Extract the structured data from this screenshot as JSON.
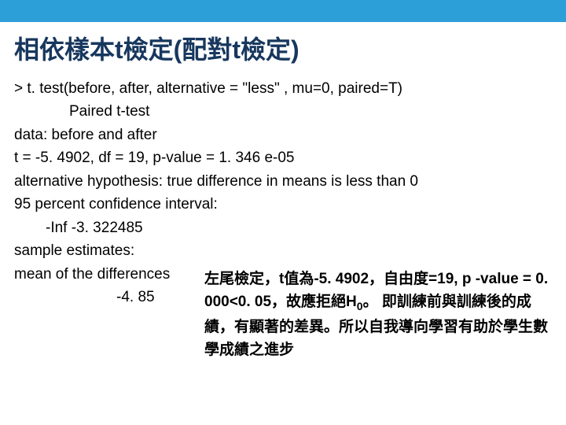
{
  "top_bar_color": "#2d9fd8",
  "title_color": "#17375e",
  "text_color": "#000000",
  "title": "相依樣本t檢定(配對t檢定)",
  "lines": {
    "l1": "> t. test(before, after, alternative = \"less\" , mu=0, paired=T)",
    "l2": "Paired t-test",
    "l3": "data:  before and after",
    "l4": "t = -5. 4902, df = 19, p-value = 1. 346 e-05",
    "l5": "alternative hypothesis: true difference in means is less than 0",
    "l6": "95 percent confidence interval:",
    "l7": "-Inf -3. 322485",
    "l8": "sample estimates:",
    "l9": "mean of the differences",
    "l10": "-4. 85"
  },
  "explain": {
    "p1a": "左尾檢定，t值為-5. 4902，自由度=19, p",
    "p1b": "-value = 0. 000<0. 05，故應拒絕H",
    "p1c": "。",
    "p2": "即訓練前與訓練後的成績，有顯著的差異。所以自我導向學習有助於學生數學成績之進步",
    "sub": "0"
  }
}
